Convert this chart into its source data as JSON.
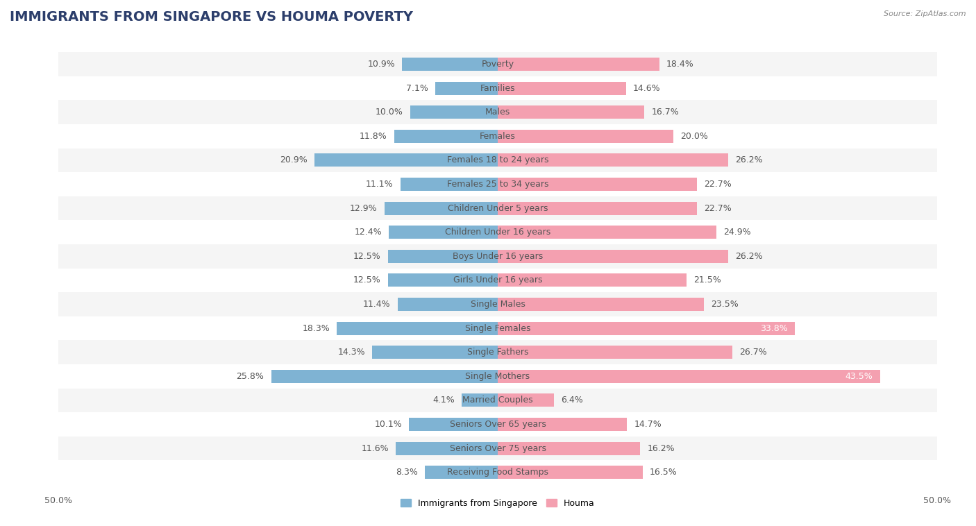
{
  "title": "IMMIGRANTS FROM SINGAPORE VS HOUMA POVERTY",
  "source": "Source: ZipAtlas.com",
  "categories": [
    "Poverty",
    "Families",
    "Males",
    "Females",
    "Females 18 to 24 years",
    "Females 25 to 34 years",
    "Children Under 5 years",
    "Children Under 16 years",
    "Boys Under 16 years",
    "Girls Under 16 years",
    "Single Males",
    "Single Females",
    "Single Fathers",
    "Single Mothers",
    "Married Couples",
    "Seniors Over 65 years",
    "Seniors Over 75 years",
    "Receiving Food Stamps"
  ],
  "left_values": [
    10.9,
    7.1,
    10.0,
    11.8,
    20.9,
    11.1,
    12.9,
    12.4,
    12.5,
    12.5,
    11.4,
    18.3,
    14.3,
    25.8,
    4.1,
    10.1,
    11.6,
    8.3
  ],
  "right_values": [
    18.4,
    14.6,
    16.7,
    20.0,
    26.2,
    22.7,
    22.7,
    24.9,
    26.2,
    21.5,
    23.5,
    33.8,
    26.7,
    43.5,
    6.4,
    14.7,
    16.2,
    16.5
  ],
  "left_color": "#7fb3d3",
  "right_color": "#f4a0b0",
  "axis_limit": 50.0,
  "background_color": "#ffffff",
  "row_color_odd": "#f5f5f5",
  "row_color_even": "#ffffff",
  "left_label": "Immigrants from Singapore",
  "right_label": "Houma",
  "title_fontsize": 14,
  "label_fontsize": 9,
  "value_fontsize": 9
}
